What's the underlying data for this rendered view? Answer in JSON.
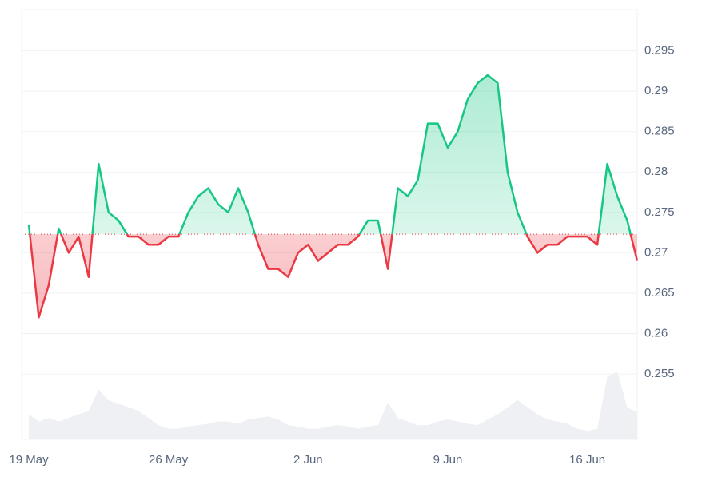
{
  "chart_data": {
    "type": "line",
    "categories": [
      "19 May",
      null,
      null,
      null,
      null,
      null,
      null,
      null,
      null,
      null,
      null,
      null,
      null,
      null,
      "26 May",
      null,
      null,
      null,
      null,
      null,
      null,
      null,
      null,
      null,
      null,
      null,
      null,
      null,
      "2 Jun",
      null,
      null,
      null,
      null,
      null,
      null,
      null,
      null,
      null,
      null,
      null,
      null,
      null,
      "9 Jun",
      null,
      null,
      null,
      null,
      null,
      null,
      null,
      null,
      null,
      null,
      null,
      null,
      null,
      "16 Jun",
      null,
      null,
      null,
      null,
      null
    ],
    "values": [
      0.2735,
      0.262,
      0.266,
      0.273,
      0.27,
      0.272,
      0.267,
      0.281,
      0.275,
      0.274,
      0.272,
      0.272,
      0.271,
      0.271,
      0.272,
      0.272,
      0.275,
      0.277,
      0.278,
      0.276,
      0.275,
      0.278,
      0.275,
      0.271,
      0.268,
      0.268,
      0.267,
      0.27,
      0.271,
      0.269,
      0.27,
      0.271,
      0.271,
      0.272,
      0.274,
      0.274,
      0.268,
      0.278,
      0.277,
      0.279,
      0.286,
      0.286,
      0.283,
      0.285,
      0.289,
      0.291,
      0.292,
      0.291,
      0.28,
      0.275,
      0.272,
      0.27,
      0.271,
      0.271,
      0.272,
      0.272,
      0.272,
      0.271,
      0.281,
      0.277,
      0.274,
      0.269
    ],
    "baseline": 0.2723,
    "volume": [
      35,
      25,
      30,
      25,
      30,
      35,
      40,
      70,
      55,
      50,
      45,
      40,
      30,
      20,
      15,
      15,
      18,
      20,
      22,
      25,
      25,
      22,
      28,
      30,
      32,
      28,
      20,
      18,
      15,
      15,
      18,
      20,
      18,
      15,
      18,
      20,
      52,
      30,
      25,
      20,
      20,
      25,
      28,
      25,
      22,
      20,
      28,
      35,
      45,
      55,
      45,
      35,
      28,
      25,
      22,
      15,
      12,
      15,
      88,
      95,
      45,
      38
    ],
    "up_color": "#16c784",
    "down_color": "#ea3943",
    "ylim": [
      0.2469,
      0.3001
    ],
    "yticks": [
      0.255,
      0.26,
      0.265,
      0.27,
      0.275,
      0.28,
      0.285,
      0.29,
      0.295
    ],
    "grid": true
  }
}
